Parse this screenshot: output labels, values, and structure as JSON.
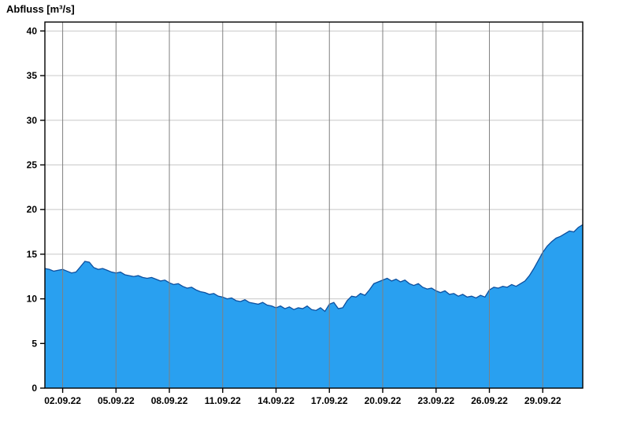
{
  "title": "Abfluss [m³/s]",
  "chart_data": {
    "type": "area",
    "title": "Abfluss [m³/s]",
    "ylabel": "Abfluss [m³/s]",
    "xlabel": "",
    "ylim": [
      0,
      41
    ],
    "y_ticks": [
      0,
      5,
      10,
      15,
      20,
      25,
      30,
      35,
      40
    ],
    "x_domain_days": [
      0,
      30.25
    ],
    "sample_interval_days": 0.25,
    "x_ticks": [
      {
        "day": 1,
        "label": "02.09.22"
      },
      {
        "day": 4,
        "label": "05.09.22"
      },
      {
        "day": 7,
        "label": "08.09.22"
      },
      {
        "day": 10,
        "label": "11.09.22"
      },
      {
        "day": 13,
        "label": "14.09.22"
      },
      {
        "day": 16,
        "label": "17.09.22"
      },
      {
        "day": 19,
        "label": "20.09.22"
      },
      {
        "day": 22,
        "label": "23.09.22"
      },
      {
        "day": 25,
        "label": "26.09.22"
      },
      {
        "day": 28,
        "label": "29.09.22"
      }
    ],
    "values": [
      13.4,
      13.3,
      13.1,
      13.2,
      13.3,
      13.1,
      12.9,
      13.0,
      13.6,
      14.2,
      14.1,
      13.5,
      13.3,
      13.4,
      13.2,
      13.0,
      12.9,
      13.0,
      12.7,
      12.6,
      12.5,
      12.6,
      12.4,
      12.3,
      12.4,
      12.2,
      12.0,
      12.1,
      11.8,
      11.6,
      11.7,
      11.4,
      11.2,
      11.3,
      11.0,
      10.8,
      10.7,
      10.5,
      10.6,
      10.3,
      10.2,
      10.0,
      10.1,
      9.8,
      9.7,
      9.9,
      9.6,
      9.5,
      9.4,
      9.6,
      9.3,
      9.2,
      9.0,
      9.2,
      8.9,
      9.1,
      8.8,
      9.0,
      8.9,
      9.2,
      8.8,
      8.7,
      9.0,
      8.6,
      9.4,
      9.6,
      8.9,
      9.0,
      9.8,
      10.3,
      10.2,
      10.6,
      10.4,
      11.0,
      11.7,
      11.9,
      12.1,
      12.3,
      12.0,
      12.2,
      11.9,
      12.1,
      11.7,
      11.5,
      11.7,
      11.3,
      11.1,
      11.2,
      10.9,
      10.7,
      10.9,
      10.5,
      10.6,
      10.3,
      10.5,
      10.2,
      10.3,
      10.1,
      10.4,
      10.2,
      11.0,
      11.3,
      11.2,
      11.4,
      11.3,
      11.6,
      11.4,
      11.7,
      12.0,
      12.6,
      13.4,
      14.3,
      15.2,
      15.9,
      16.4,
      16.8,
      17.0,
      17.3,
      17.6,
      17.5,
      18.0,
      18.3
    ],
    "colors": {
      "fill": "#29A0F0",
      "line": "#0d4f9e",
      "grid_horizontal": "#c8c8c8",
      "grid_vertical": "#808080",
      "frame": "#000000",
      "tick": "#000000"
    },
    "grid": true,
    "legend": false
  }
}
